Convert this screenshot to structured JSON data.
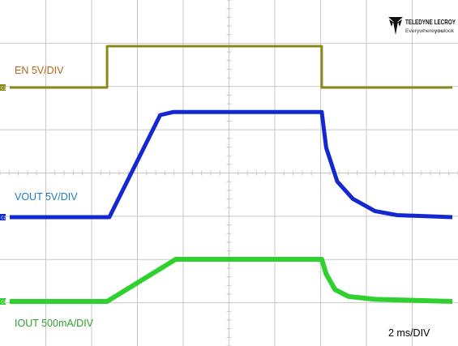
{
  "logo": {
    "brand": "TELEDYNE LECROY",
    "tagline_prefix": "Everywhere",
    "tagline_emphasis": "you",
    "tagline_suffix": "look"
  },
  "colors": {
    "background": "#ffffff",
    "grid": "#c8c8c8",
    "en_trace": "#8a8a1a",
    "en_label": "#b5651d",
    "vout_trace": "#1428d2",
    "vout_label": "#1e78c8",
    "iout_trace": "#2ed12e",
    "iout_label": "#2e9e2e",
    "text": "#000000"
  },
  "chart_data": {
    "type": "line",
    "title": "",
    "grid_divisions": {
      "horizontal": 10,
      "vertical": 8
    },
    "timebase_label": "2 ms/DIV",
    "x_unit": "ms",
    "x_range": [
      0,
      20
    ],
    "channels": [
      {
        "name": "EN 5V/DIV",
        "scale": "5V/DIV",
        "marker": "C1",
        "y_unit": "V",
        "x": [
          0,
          4.4,
          4.4,
          14.1,
          14.1,
          20
        ],
        "y": [
          0,
          0,
          10,
          10,
          0,
          0
        ]
      },
      {
        "name": "VOUT 5V/DIV",
        "scale": "5V/DIV",
        "marker": "C2",
        "y_unit": "V",
        "x": [
          0,
          4.5,
          6.8,
          7.4,
          14.1,
          14.3,
          14.8,
          15.5,
          16.5,
          17.5,
          20
        ],
        "y": [
          0,
          0,
          10,
          10.3,
          10.3,
          6.8,
          3.5,
          1.8,
          0.6,
          0.2,
          0
        ]
      },
      {
        "name": "IOUT 500mA/DIV",
        "scale": "500mA/DIV",
        "marker": "C4",
        "y_unit": "mA",
        "x": [
          0,
          4.4,
          7.5,
          14.1,
          14.3,
          14.7,
          15.3,
          16.5,
          20
        ],
        "y": [
          0,
          0,
          1000,
          1000,
          650,
          280,
          120,
          50,
          0
        ]
      }
    ]
  }
}
